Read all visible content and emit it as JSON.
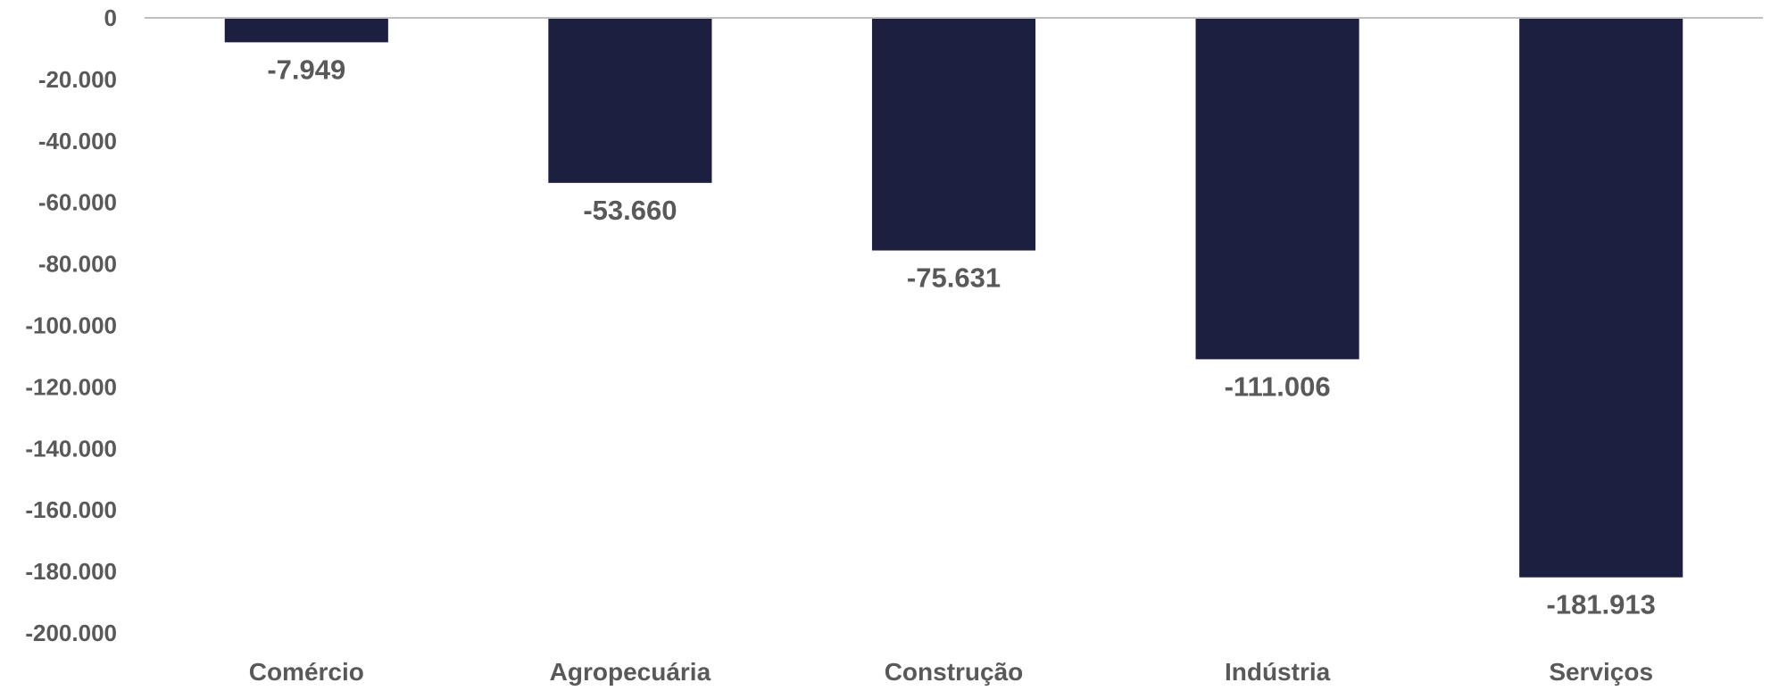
{
  "chart_data": {
    "type": "bar",
    "categories": [
      "Comércio",
      "Agropecuária",
      "Construção",
      "Indústria",
      "Serviços"
    ],
    "values": [
      -7949,
      -53660,
      -75631,
      -111006,
      -181913
    ],
    "data_labels": [
      "-7.949",
      "-53.660",
      "-75.631",
      "-111.006",
      "-181.913"
    ],
    "y_ticks": [
      0,
      -20000,
      -40000,
      -60000,
      -80000,
      -100000,
      -120000,
      -140000,
      -160000,
      -180000,
      -200000
    ],
    "y_tick_labels": [
      "0",
      "-20.000",
      "-40.000",
      "-60.000",
      "-80.000",
      "-100.000",
      "-120.000",
      "-140.000",
      "-160.000",
      "-180.000",
      "-200.000"
    ],
    "ylim": [
      -200000,
      0
    ],
    "grid": false,
    "legend": "none",
    "title": "",
    "xlabel": "",
    "ylabel": ""
  },
  "colors": {
    "bar": "#1c1f40",
    "text": "#595959",
    "axis": "#bfbfbf"
  }
}
